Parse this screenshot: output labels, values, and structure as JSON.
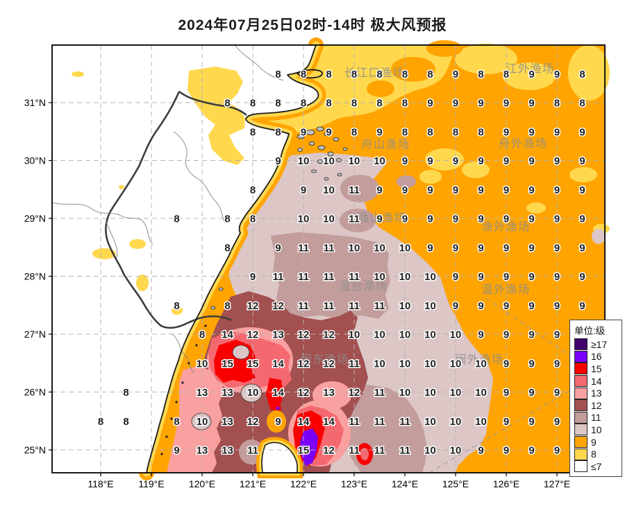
{
  "title": "2024年07月25日02时-14时 极大风预报",
  "legend": {
    "title": "单位:级",
    "items": [
      {
        "label": "≥17",
        "color": "#43026E"
      },
      {
        "label": "16",
        "color": "#7B00F7"
      },
      {
        "label": "15",
        "color": "#F80000"
      },
      {
        "label": "14",
        "color": "#F4696F"
      },
      {
        "label": "13",
        "color": "#F9A0A0"
      },
      {
        "label": "12",
        "color": "#A35050"
      },
      {
        "label": "11",
        "color": "#C39C9C"
      },
      {
        "label": "10",
        "color": "#DCC6C6"
      },
      {
        "label": "9",
        "color": "#FFA400"
      },
      {
        "label": "8",
        "color": "#FFD84E"
      },
      {
        "label": "≤7",
        "color": "#FFFFFF"
      }
    ]
  },
  "axes": {
    "x_labels": [
      "118°E",
      "119°E",
      "120°E",
      "121°E",
      "122°E",
      "123°E",
      "124°E",
      "125°E",
      "126°E",
      "127°E"
    ],
    "x_lons": [
      118,
      119,
      120,
      121,
      122,
      123,
      124,
      125,
      126,
      127
    ],
    "y_labels": [
      "31°N",
      "30°N",
      "29°N",
      "28°N",
      "27°N",
      "26°N",
      "25°N"
    ],
    "y_lats": [
      31,
      30,
      29,
      28,
      27,
      26,
      25
    ]
  },
  "chart_data": {
    "type": "heatmap",
    "title": "2024年07月25日02时-14时 极大风预报",
    "units": "级 (风力等级)",
    "legend_levels": [
      "≥17",
      "16",
      "15",
      "14",
      "13",
      "12",
      "11",
      "10",
      "9",
      "8",
      "≤7"
    ],
    "lon_range": [
      117.0,
      128.0
    ],
    "lat_range": [
      24.6,
      32.0
    ],
    "grid_lons": [
      118.0,
      118.5,
      119.0,
      119.5,
      120.0,
      120.5,
      121.0,
      121.5,
      122.0,
      122.5,
      123.0,
      123.5,
      124.0,
      124.5,
      125.0,
      125.5,
      126.0,
      126.5,
      127.0,
      127.5
    ],
    "grid_lats": [
      31.5,
      31.0,
      30.5,
      30.0,
      29.5,
      29.0,
      28.5,
      28.0,
      27.5,
      27.0,
      26.5,
      26.0,
      25.5,
      25.0
    ],
    "values": [
      [
        null,
        null,
        null,
        null,
        null,
        null,
        null,
        8,
        8,
        8,
        8,
        8,
        8,
        8,
        9,
        8,
        8,
        9,
        9,
        8
      ],
      [
        null,
        null,
        null,
        null,
        null,
        8,
        8,
        8,
        8,
        8,
        8,
        8,
        8,
        9,
        9,
        9,
        9,
        9,
        8,
        8
      ],
      [
        null,
        null,
        null,
        null,
        null,
        null,
        8,
        8,
        9,
        9,
        8,
        9,
        8,
        8,
        8,
        8,
        9,
        9,
        9,
        9
      ],
      [
        null,
        null,
        null,
        null,
        null,
        null,
        null,
        9,
        10,
        10,
        10,
        10,
        9,
        9,
        9,
        9,
        9,
        9,
        9,
        9
      ],
      [
        null,
        null,
        null,
        null,
        null,
        null,
        8,
        null,
        9,
        10,
        11,
        9,
        9,
        9,
        9,
        9,
        9,
        9,
        9,
        9
      ],
      [
        null,
        null,
        null,
        8,
        null,
        8,
        8,
        null,
        10,
        10,
        11,
        9,
        9,
        9,
        9,
        9,
        9,
        9,
        9,
        9
      ],
      [
        null,
        null,
        null,
        null,
        null,
        8,
        null,
        9,
        11,
        11,
        10,
        10,
        10,
        9,
        9,
        9,
        9,
        9,
        9,
        9
      ],
      [
        null,
        null,
        null,
        null,
        null,
        null,
        9,
        11,
        11,
        11,
        11,
        10,
        10,
        10,
        9,
        9,
        9,
        9,
        9,
        9
      ],
      [
        null,
        null,
        null,
        8,
        null,
        8,
        12,
        12,
        11,
        11,
        11,
        11,
        10,
        10,
        9,
        9,
        9,
        9,
        9,
        9
      ],
      [
        null,
        null,
        null,
        null,
        8,
        14,
        12,
        13,
        12,
        12,
        10,
        10,
        10,
        10,
        10,
        9,
        9,
        9,
        9,
        null
      ],
      [
        null,
        null,
        null,
        null,
        10,
        15,
        15,
        14,
        12,
        12,
        11,
        10,
        10,
        10,
        10,
        10,
        9,
        9,
        9,
        null
      ],
      [
        null,
        8,
        null,
        null,
        13,
        13,
        10,
        14,
        12,
        13,
        12,
        11,
        10,
        10,
        10,
        10,
        9,
        9,
        9,
        null
      ],
      [
        8,
        8,
        null,
        8,
        10,
        13,
        12,
        9,
        14,
        14,
        11,
        11,
        11,
        10,
        10,
        10,
        9,
        9,
        9,
        null
      ],
      [
        null,
        null,
        null,
        9,
        13,
        13,
        11,
        null,
        15,
        12,
        11,
        11,
        11,
        10,
        10,
        9,
        9,
        9,
        9,
        null
      ]
    ],
    "region_labels": [
      {
        "text": "长江口渔场",
        "lon": 123.4,
        "lat": 31.52
      },
      {
        "text": "江外渔场",
        "lon": 126.47,
        "lat": 31.59
      },
      {
        "text": "舟山渔场",
        "lon": 123.62,
        "lat": 30.29
      },
      {
        "text": "舟外渔场",
        "lon": 126.33,
        "lat": 30.3
      },
      {
        "text": "渔山渔场",
        "lon": 123.55,
        "lat": 29.02
      },
      {
        "text": "渔外渔场",
        "lon": 125.99,
        "lat": 28.86
      },
      {
        "text": "温台渔场",
        "lon": 123.18,
        "lat": 27.84
      },
      {
        "text": "温外渔场",
        "lon": 125.99,
        "lat": 27.78
      },
      {
        "text": "闽东渔场",
        "lon": 122.42,
        "lat": 26.57
      },
      {
        "text": "闽外渔场",
        "lon": 125.47,
        "lat": 26.57
      }
    ]
  }
}
